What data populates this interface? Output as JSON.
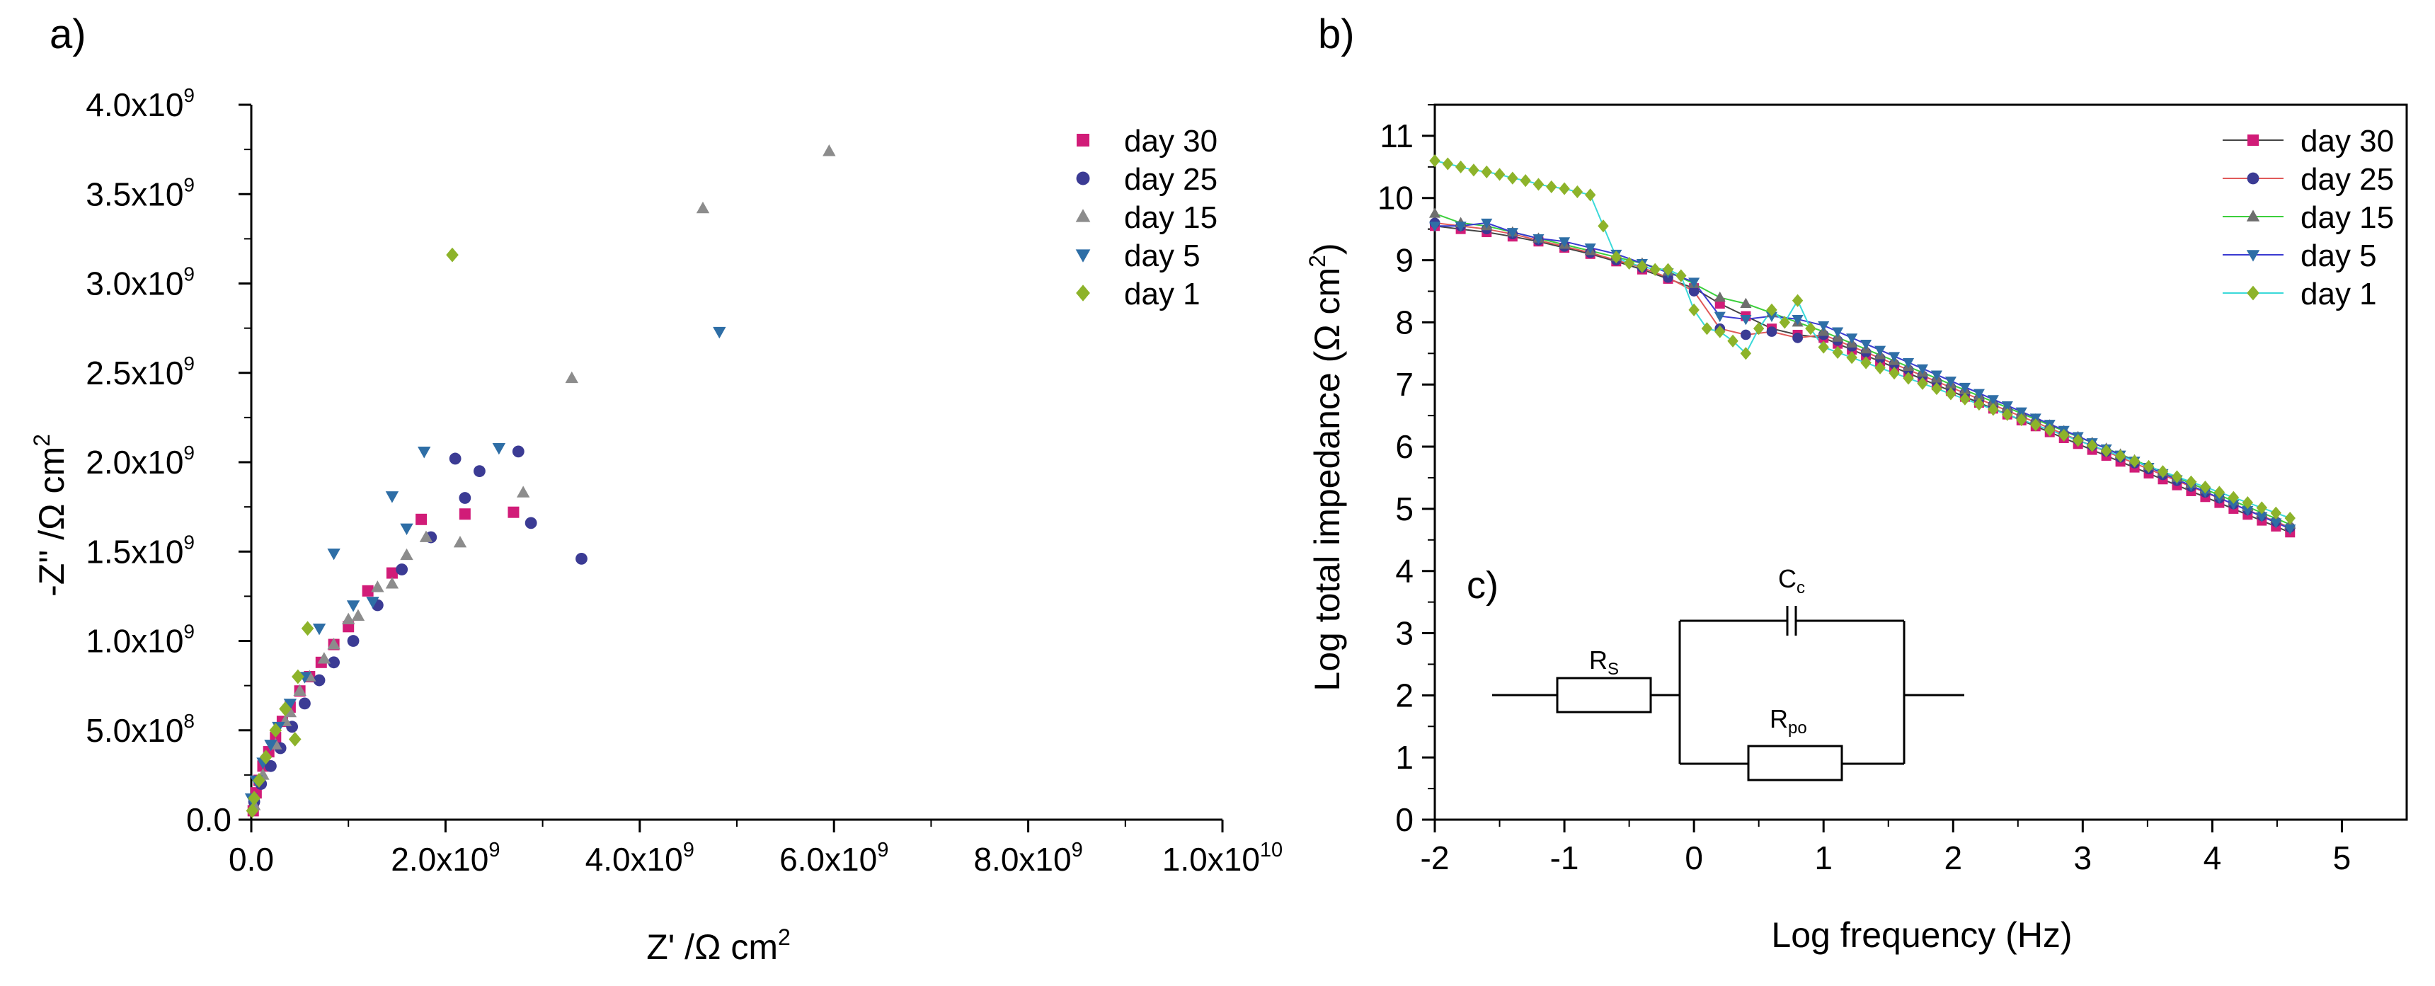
{
  "chart_data": [
    {
      "panel_label": "a)",
      "type": "scatter",
      "xlabel": "Z' /Ω cm",
      "xlabel_sup": "2",
      "ylabel": "-Z'' /Ω cm",
      "ylabel_sup": "2",
      "xlim": [
        0,
        10000000000
      ],
      "ylim": [
        0,
        4000000000
      ],
      "x_ticks": [
        0,
        2000000000,
        4000000000,
        6000000000,
        8000000000,
        10000000000
      ],
      "x_tick_labels": [
        {
          "base": "0.0",
          "exp": ""
        },
        {
          "base": "2.0x10",
          "exp": "9"
        },
        {
          "base": "4.0x10",
          "exp": "9"
        },
        {
          "base": "6.0x10",
          "exp": "9"
        },
        {
          "base": "8.0x10",
          "exp": "9"
        },
        {
          "base": "1.0x10",
          "exp": "10"
        }
      ],
      "y_ticks": [
        0,
        500000000,
        1000000000,
        1500000000,
        2000000000,
        2500000000,
        3000000000,
        3500000000,
        4000000000
      ],
      "y_tick_labels": [
        {
          "base": "0.0",
          "exp": ""
        },
        {
          "base": "5.0x10",
          "exp": "8"
        },
        {
          "base": "1.0x10",
          "exp": "9"
        },
        {
          "base": "1.5x10",
          "exp": "9"
        },
        {
          "base": "2.0x10",
          "exp": "9"
        },
        {
          "base": "2.5x10",
          "exp": "9"
        },
        {
          "base": "3.0x10",
          "exp": "9"
        },
        {
          "base": "3.5x10",
          "exp": "9"
        },
        {
          "base": "4.0x10",
          "exp": "9"
        }
      ],
      "legend_position": "top-right",
      "series": [
        {
          "name": "day 30",
          "marker": "square",
          "color": "#d11c78",
          "x": [
            20000000.0,
            50000000.0,
            80000000.0,
            120000000.0,
            180000000.0,
            250000000.0,
            320000000.0,
            400000000.0,
            500000000.0,
            600000000.0,
            720000000.0,
            850000000.0,
            1000000000.0,
            1200000000.0,
            1450000000.0,
            1750000000.0,
            2200000000.0,
            2700000000.0
          ],
          "y": [
            50000000.0,
            150000000.0,
            220000000.0,
            300000000.0,
            380000000.0,
            460000000.0,
            550000000.0,
            630000000.0,
            720000000.0,
            800000000.0,
            880000000.0,
            980000000.0,
            1080000000.0,
            1280000000.0,
            1380000000.0,
            1680000000.0,
            1710000000.0,
            1720000000.0
          ]
        },
        {
          "name": "day 25",
          "marker": "circle",
          "color": "#3b3b94",
          "x": [
            30000000.0,
            100000000.0,
            200000000.0,
            300000000.0,
            420000000.0,
            550000000.0,
            700000000.0,
            850000000.0,
            1050000000.0,
            1300000000.0,
            1550000000.0,
            1850000000.0,
            2200000000.0,
            2350000000.0,
            2100000000.0,
            2750000000.0,
            2880000000.0,
            3400000000.0
          ],
          "y": [
            100000000.0,
            200000000.0,
            300000000.0,
            400000000.0,
            520000000.0,
            650000000.0,
            780000000.0,
            880000000.0,
            1000000000.0,
            1200000000.0,
            1400000000.0,
            1580000000.0,
            1800000000.0,
            1950000000.0,
            2020000000.0,
            2060000000.0,
            1660000000.0,
            1460000000.0
          ]
        },
        {
          "name": "day 15",
          "marker": "triangle",
          "color": "#8c8c8c",
          "x": [
            30000000.0,
            120000000.0,
            250000000.0,
            400000000.0,
            600000000.0,
            850000000.0,
            1100000000.0,
            1450000000.0,
            1800000000.0,
            2150000000.0,
            2800000000.0,
            3300000000.0,
            4650000000.0,
            5950000000.0
          ],
          "y": [
            80000000.0,
            250000000.0,
            420000000.0,
            600000000.0,
            800000000.0,
            980000000.0,
            1140000000.0,
            1320000000.0,
            1580000000.0,
            1550000000.0,
            1830000000.0,
            2470000000.0,
            3420000000.0,
            3740000000.0
          ],
          "extra_x": [
            350000000.0,
            500000000.0,
            750000000.0,
            1000000000.0,
            1300000000.0,
            1600000000.0
          ],
          "extra_y": [
            550000000.0,
            720000000.0,
            900000000.0,
            1120000000.0,
            1300000000.0,
            1480000000.0
          ]
        },
        {
          "name": "day 5",
          "marker": "triangle-down",
          "color": "#2e6ea6",
          "x": [
            0.0,
            50000000.0,
            120000000.0,
            200000000.0,
            280000000.0,
            400000000.0,
            550000000.0,
            700000000.0,
            850000000.0,
            1050000000.0,
            1250000000.0,
            1450000000.0,
            1600000000.0,
            1780000000.0,
            2550000000.0,
            4820000000.0
          ],
          "y": [
            120000000.0,
            220000000.0,
            320000000.0,
            420000000.0,
            520000000.0,
            650000000.0,
            800000000.0,
            1070000000.0,
            1490000000.0,
            1200000000.0,
            1220000000.0,
            1810000000.0,
            1630000000.0,
            2060000000.0,
            2080000000.0,
            2730000000.0
          ]
        },
        {
          "name": "day 1",
          "marker": "diamond",
          "color": "#8db32a",
          "x": [
            10000000.0,
            30000000.0,
            80000000.0,
            150000000.0,
            250000000.0,
            350000000.0,
            450000000.0,
            480000000.0,
            580000000.0,
            2070000000.0
          ],
          "y": [
            50000000.0,
            120000000.0,
            220000000.0,
            350000000.0,
            500000000.0,
            620000000.0,
            450000000.0,
            800000000.0,
            1070000000.0,
            3160000000.0
          ]
        }
      ]
    },
    {
      "panel_label": "b)",
      "type": "line",
      "xlabel": "Log frequency (Hz)",
      "ylabel": "Log total impedance (Ω cm",
      "ylabel_sup": "2",
      "ylabel_end": ")",
      "xlim": [
        -2,
        5.5
      ],
      "ylim": [
        0,
        11.5
      ],
      "x_ticks": [
        -2,
        -1,
        0,
        1,
        2,
        3,
        4,
        5
      ],
      "x_tick_labels": [
        "-2",
        "-1",
        "0",
        "1",
        "2",
        "3",
        "4",
        "5"
      ],
      "y_ticks": [
        0,
        1,
        2,
        3,
        4,
        5,
        6,
        7,
        8,
        9,
        10,
        11
      ],
      "y_tick_labels": [
        "0",
        "1",
        "2",
        "3",
        "4",
        "5",
        "6",
        "7",
        "8",
        "9",
        "10",
        "11"
      ],
      "legend_position": "top-right",
      "series": [
        {
          "name": "day 30",
          "marker": "square",
          "color": "#d11c78",
          "line_color": "#444444",
          "low_x": [
            -2,
            -1.8,
            -1.6,
            -1.4,
            -1.2,
            -1,
            -0.8,
            -0.6,
            -0.4,
            -0.2,
            0,
            0.2,
            0.4,
            0.6,
            0.8,
            1.0
          ],
          "low_y": [
            9.55,
            9.5,
            9.45,
            9.38,
            9.3,
            9.2,
            9.1,
            8.98,
            8.85,
            8.7,
            8.55,
            8.3,
            8.1,
            7.9,
            7.8,
            7.75
          ],
          "hf_start": [
            1.0,
            7.75
          ],
          "hf_end": [
            4.6,
            4.62
          ]
        },
        {
          "name": "day 25",
          "marker": "circle",
          "color": "#3b3b94",
          "line_color": "#e05a5a",
          "low_x": [
            -2,
            -1.8,
            -1.6,
            -1.4,
            -1.2,
            -1,
            -0.8,
            -0.6,
            -0.4,
            -0.2,
            0,
            0.2,
            0.4,
            0.6,
            0.8,
            1.0
          ],
          "low_y": [
            9.6,
            9.55,
            9.5,
            9.42,
            9.32,
            9.22,
            9.12,
            9.0,
            8.88,
            8.72,
            8.5,
            7.9,
            7.8,
            7.85,
            7.75,
            7.8
          ],
          "hf_start": [
            1.0,
            7.8
          ],
          "hf_end": [
            4.6,
            4.7
          ]
        },
        {
          "name": "day 15",
          "marker": "triangle",
          "color": "#6e6e6e",
          "line_color": "#3ccf3c",
          "low_x": [
            -2,
            -1.8,
            -1.6,
            -1.4,
            -1.2,
            -1,
            -0.8,
            -0.6,
            -0.4,
            -0.2,
            0,
            0.2,
            0.4,
            0.6,
            0.8,
            1.0
          ],
          "low_y": [
            9.75,
            9.6,
            9.55,
            9.45,
            9.35,
            9.25,
            9.15,
            9.05,
            8.95,
            8.82,
            8.62,
            8.4,
            8.3,
            8.15,
            8.0,
            7.85
          ],
          "hf_start": [
            1.0,
            7.85
          ],
          "hf_end": [
            4.6,
            4.75
          ]
        },
        {
          "name": "day 5",
          "marker": "triangle-down",
          "color": "#2e6ea6",
          "line_color": "#3a3ad1",
          "low_x": [
            -2,
            -1.8,
            -1.6,
            -1.4,
            -1.2,
            -1,
            -0.8,
            -0.6,
            -0.4,
            -0.2,
            0,
            0.2,
            0.4,
            0.6,
            0.8,
            1.0
          ],
          "low_y": [
            9.55,
            9.55,
            9.6,
            9.45,
            9.35,
            9.3,
            9.2,
            9.1,
            8.95,
            8.8,
            8.65,
            8.1,
            8.05,
            8.1,
            8.05,
            7.95
          ],
          "hf_start": [
            1.0,
            7.95
          ],
          "hf_end": [
            4.6,
            4.68
          ]
        },
        {
          "name": "day 1",
          "marker": "diamond",
          "color": "#8db32a",
          "line_color": "#3ad9d9",
          "low_x": [
            -2,
            -1.9,
            -1.8,
            -1.7,
            -1.6,
            -1.5,
            -1.4,
            -1.3,
            -1.2,
            -1.1,
            -1.0,
            -0.9,
            -0.8,
            -0.7,
            -0.6,
            -0.5,
            -0.4,
            -0.3,
            -0.2,
            -0.1,
            0.0,
            0.1,
            0.2,
            0.3,
            0.4,
            0.5,
            0.6,
            0.7,
            0.8,
            0.9,
            1.0
          ],
          "low_y": [
            10.6,
            10.55,
            10.5,
            10.45,
            10.42,
            10.38,
            10.32,
            10.28,
            10.22,
            10.18,
            10.15,
            10.1,
            10.05,
            9.55,
            9.05,
            8.95,
            8.9,
            8.85,
            8.85,
            8.75,
            8.2,
            7.9,
            7.85,
            7.7,
            7.5,
            7.9,
            8.2,
            8.0,
            8.35,
            7.9,
            7.6
          ],
          "hf_start": [
            1.0,
            7.6
          ],
          "hf_end": [
            4.6,
            4.85
          ]
        }
      ],
      "inset": {
        "panel_label": "c)",
        "rs_label": "R",
        "rs_sub": "S",
        "cc_label": "C",
        "cc_sub": "c",
        "rpo_label": "R",
        "rpo_sub": "po"
      }
    }
  ]
}
